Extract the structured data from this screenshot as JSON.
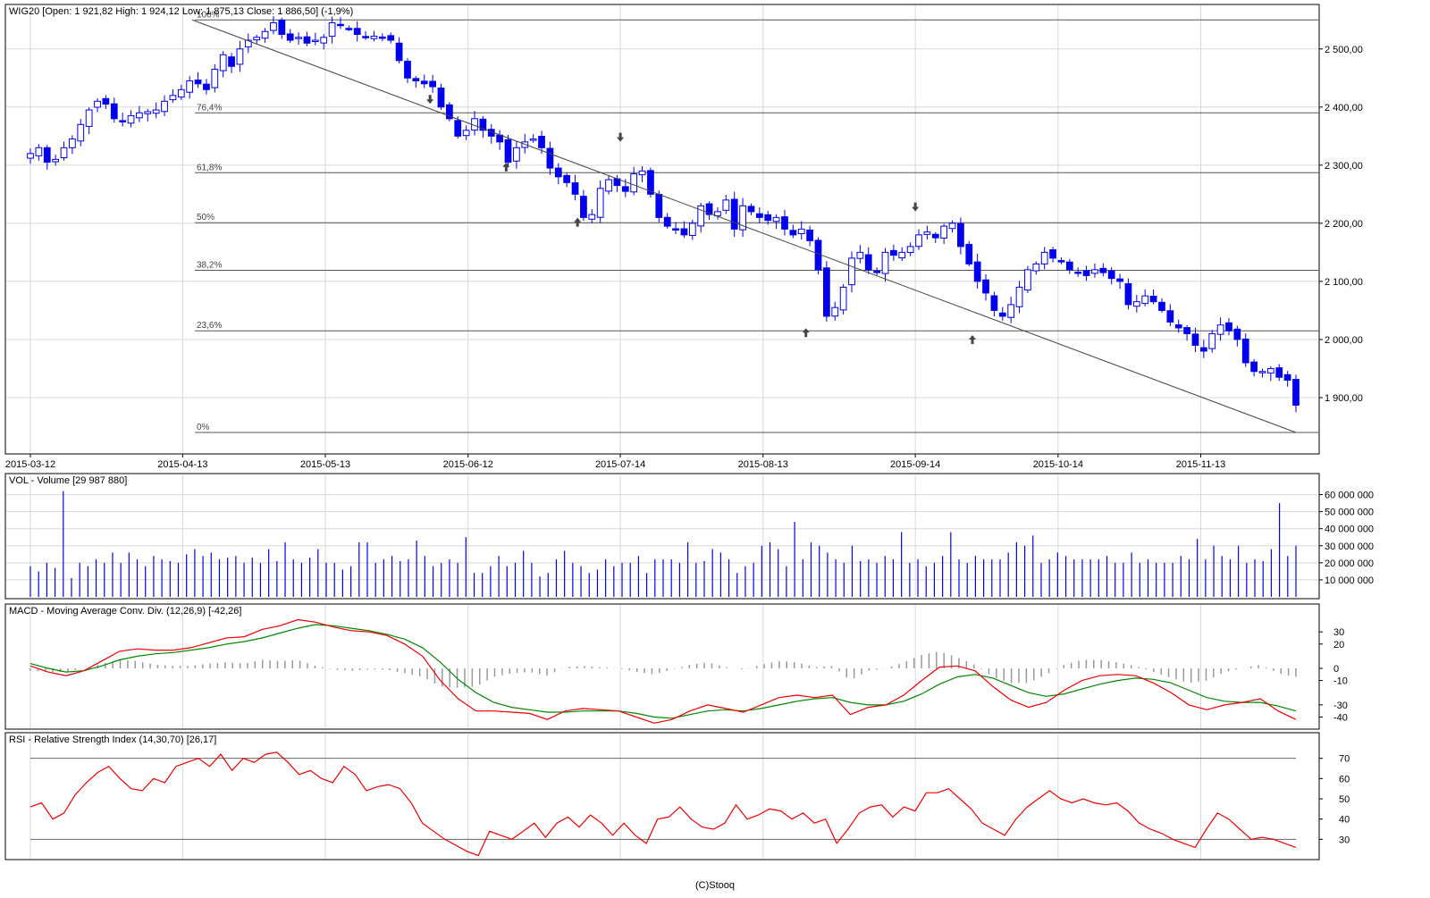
{
  "colors": {
    "candle": "#0000ee",
    "volume": "#0000ee",
    "macd_line": "#ee0000",
    "signal_line": "#008800",
    "histogram": "#999999",
    "rsi_line": "#ee0000",
    "grid": "#d8d8d8",
    "fib": "#555555",
    "trend": "#444444"
  },
  "footer": "(C)Stooq",
  "chart_data": [
    {
      "type": "candlestick",
      "title": "WIG20 [Open: 1 921,82  High: 1 924,12  Low: 1 875,13  Close: 1 886,50] (-1,9%)",
      "ylim": [
        1840,
        2555
      ],
      "y_ticks": [
        1900,
        2000,
        2100,
        2200,
        2300,
        2400,
        2500
      ],
      "y_tick_labels": [
        "1 900,00",
        "2 000,00",
        "2 100,00",
        "2 200,00",
        "2 300,00",
        "2 400,00",
        "2 500,00"
      ],
      "x_ticks": [
        "2015-03-12",
        "2015-04-13",
        "2015-05-13",
        "2015-06-12",
        "2015-07-14",
        "2015-08-13",
        "2015-09-14",
        "2015-10-14",
        "2015-11-13"
      ],
      "fibonacci": [
        {
          "label": "100%",
          "value": 2550
        },
        {
          "label": "76,4%",
          "value": 2390
        },
        {
          "label": "61,8%",
          "value": 2287
        },
        {
          "label": "50%",
          "value": 2201
        },
        {
          "label": "38,2%",
          "value": 2119
        },
        {
          "label": "23,6%",
          "value": 2015
        },
        {
          "label": "0%",
          "value": 1840
        }
      ],
      "close_path": [
        2320,
        2330,
        2305,
        2310,
        2330,
        2345,
        2370,
        2395,
        2410,
        2405,
        2380,
        2375,
        2385,
        2390,
        2392,
        2395,
        2410,
        2420,
        2430,
        2445,
        2440,
        2430,
        2465,
        2490,
        2470,
        2500,
        2515,
        2520,
        2530,
        2545,
        2525,
        2515,
        2520,
        2510,
        2515,
        2520,
        2545,
        2540,
        2535,
        2525,
        2520,
        2522,
        2520,
        2515,
        2480,
        2450,
        2445,
        2440,
        2435,
        2400,
        2380,
        2350,
        2360,
        2380,
        2360,
        2350,
        2340,
        2305,
        2330,
        2340,
        2345,
        2330,
        2295,
        2280,
        2270,
        2250,
        2210,
        2215,
        2260,
        2275,
        2265,
        2255,
        2285,
        2290,
        2250,
        2210,
        2195,
        2190,
        2180,
        2200,
        2230,
        2215,
        2220,
        2240,
        2190,
        2230,
        2220,
        2210,
        2205,
        2210,
        2190,
        2180,
        2190,
        2170,
        2120,
        2040,
        2055,
        2090,
        2140,
        2150,
        2120,
        2115,
        2150,
        2145,
        2150,
        2160,
        2180,
        2185,
        2175,
        2195,
        2200,
        2160,
        2130,
        2100,
        2080,
        2050,
        2040,
        2060,
        2090,
        2120,
        2130,
        2150,
        2140,
        2135,
        2120,
        2115,
        2110,
        2120,
        2115,
        2105,
        2100,
        2060,
        2065,
        2075,
        2065,
        2050,
        2030,
        2020,
        2010,
        1990,
        1980,
        2010,
        2025,
        2015,
        2000,
        1960,
        1945,
        1945,
        1950,
        1935,
        1930,
        1887
      ],
      "up_arrows": [
        {
          "date": "2015-06-20",
          "price": 2300
        },
        {
          "date": "2015-07-05",
          "price": 2205
        },
        {
          "date": "2015-08-22",
          "price": 2015
        },
        {
          "date": "2015-09-26",
          "price": 2003
        }
      ],
      "down_arrows": [
        {
          "date": "2015-06-04",
          "price": 2410
        },
        {
          "date": "2015-07-14",
          "price": 2345
        },
        {
          "date": "2015-09-14",
          "price": 2225
        }
      ],
      "trendline": [
        {
          "date": "2015-04-15",
          "price": 2550
        },
        {
          "date": "2015-12-03",
          "price": 1840
        }
      ]
    },
    {
      "type": "bar",
      "title": "VOL - Volume [29 987 880]",
      "ylim": [
        0,
        65000000
      ],
      "y_ticks": [
        10000000,
        20000000,
        30000000,
        40000000,
        50000000,
        60000000
      ],
      "y_tick_labels": [
        "10 000 000",
        "20 000 000",
        "30 000 000",
        "40 000 000",
        "50 000 000",
        "60 000 000"
      ],
      "values": [
        18000000,
        15000000,
        20000000,
        17000000,
        62000000,
        11000000,
        20000000,
        18000000,
        22000000,
        20000000,
        26000000,
        20000000,
        26000000,
        22000000,
        18000000,
        24000000,
        22000000,
        21000000,
        20000000,
        25000000,
        28000000,
        24000000,
        26000000,
        22000000,
        23000000,
        24000000,
        20000000,
        23000000,
        20000000,
        28000000,
        21000000,
        32000000,
        22000000,
        20000000,
        23000000,
        28000000,
        20000000,
        20000000,
        16000000,
        18000000,
        32000000,
        32000000,
        20000000,
        22000000,
        24000000,
        21000000,
        22000000,
        33000000,
        24000000,
        18000000,
        20000000,
        22000000,
        20000000,
        35000000,
        14000000,
        14000000,
        18000000,
        24000000,
        18000000,
        20000000,
        27000000,
        20000000,
        12000000,
        14000000,
        22000000,
        27000000,
        20000000,
        18000000,
        14000000,
        16000000,
        22000000,
        18000000,
        20000000,
        20000000,
        24000000,
        14000000,
        22000000,
        22000000,
        22000000,
        20000000,
        32000000,
        20000000,
        21000000,
        28000000,
        26000000,
        22000000,
        14000000,
        18000000,
        20000000,
        30000000,
        32000000,
        28000000,
        18000000,
        44000000,
        22000000,
        32000000,
        30000000,
        26000000,
        22000000,
        20000000,
        30000000,
        21000000,
        22000000,
        20000000,
        24000000,
        22000000,
        38000000,
        20000000,
        22000000,
        18000000,
        20000000,
        24000000,
        38000000,
        22000000,
        20000000,
        24000000,
        22000000,
        22000000,
        22000000,
        26000000,
        32000000,
        30000000,
        36000000,
        20000000,
        22000000,
        26000000,
        24000000,
        22000000,
        22000000,
        22000000,
        22000000,
        24000000,
        20000000,
        20000000,
        26000000,
        20000000,
        22000000,
        20000000,
        20000000,
        20000000,
        24000000,
        22000000,
        34000000,
        22000000,
        30000000,
        24000000,
        22000000,
        30000000,
        20000000,
        22000000,
        21000000,
        28000000,
        55000000,
        24000000,
        30000000
      ]
    },
    {
      "type": "line",
      "title": "MACD - Moving Average Conv. Div. (12,26,9) [-42,26]",
      "ylim": [
        -47,
        47
      ],
      "y_ticks": [
        -40,
        -30,
        -10,
        0,
        20,
        30
      ],
      "y_tick_labels": [
        "-40",
        "-30",
        "-10",
        "0",
        "20",
        "30"
      ],
      "series": [
        {
          "name": "MACD",
          "values": [
            2,
            -3,
            -6,
            -2,
            6,
            14,
            16,
            15,
            15,
            17,
            21,
            25,
            26,
            32,
            35,
            40,
            38,
            34,
            31,
            30,
            27,
            20,
            10,
            -10,
            -25,
            -35,
            -35,
            -36,
            -37,
            -42,
            -35,
            -33,
            -34,
            -35,
            -40,
            -45,
            -42,
            -35,
            -30,
            -33,
            -36,
            -30,
            -24,
            -22,
            -24,
            -22,
            -38,
            -32,
            -30,
            -22,
            -10,
            1,
            2,
            -2,
            -15,
            -26,
            -32,
            -28,
            -18,
            -10,
            -6,
            -5,
            -6,
            -12,
            -20,
            -30,
            -34,
            -30,
            -28,
            -25,
            -35,
            -42
          ]
        },
        {
          "name": "Signal",
          "values": [
            4,
            0,
            -3,
            -2,
            2,
            7,
            10,
            12,
            13,
            15,
            17,
            20,
            22,
            25,
            29,
            33,
            36,
            35,
            33,
            31,
            28,
            24,
            17,
            5,
            -9,
            -20,
            -28,
            -32,
            -34,
            -36,
            -36,
            -35,
            -35,
            -35,
            -37,
            -40,
            -41,
            -38,
            -35,
            -34,
            -35,
            -33,
            -30,
            -27,
            -25,
            -24,
            -28,
            -30,
            -30,
            -27,
            -21,
            -13,
            -7,
            -5,
            -8,
            -14,
            -20,
            -23,
            -21,
            -17,
            -13,
            -10,
            -8,
            -9,
            -12,
            -18,
            -24,
            -27,
            -28,
            -28,
            -31,
            -35
          ]
        }
      ]
    },
    {
      "type": "line",
      "title": "RSI - Relative Strength Index (14,30,70) [26,17]",
      "ylim": [
        20,
        80
      ],
      "y_ticks": [
        30,
        40,
        50,
        60,
        70
      ],
      "y_tick_labels": [
        "30",
        "40",
        "50",
        "60",
        "70"
      ],
      "levels": [
        30,
        70
      ],
      "series": [
        {
          "name": "RSI",
          "values": [
            46,
            48,
            40,
            43,
            52,
            58,
            63,
            66,
            60,
            55,
            54,
            60,
            58,
            66,
            68,
            70,
            66,
            72,
            64,
            70,
            68,
            72,
            73,
            68,
            62,
            64,
            60,
            58,
            66,
            62,
            54,
            56,
            57,
            55,
            48,
            38,
            34,
            30,
            27,
            24,
            22,
            34,
            32,
            30,
            34,
            38,
            31,
            38,
            41,
            36,
            42,
            38,
            32,
            38,
            32,
            28,
            40,
            41,
            46,
            40,
            36,
            35,
            38,
            47,
            40,
            42,
            45,
            44,
            40,
            43,
            38,
            40,
            28,
            35,
            43,
            46,
            47,
            41,
            46,
            44,
            53,
            53,
            55,
            50,
            45,
            38,
            35,
            32,
            40,
            46,
            50,
            54,
            50,
            48,
            50,
            48,
            47,
            48,
            44,
            38,
            35,
            33,
            30,
            28,
            26,
            35,
            43,
            40,
            35,
            30,
            31,
            30,
            28,
            26
          ]
        }
      ]
    }
  ]
}
